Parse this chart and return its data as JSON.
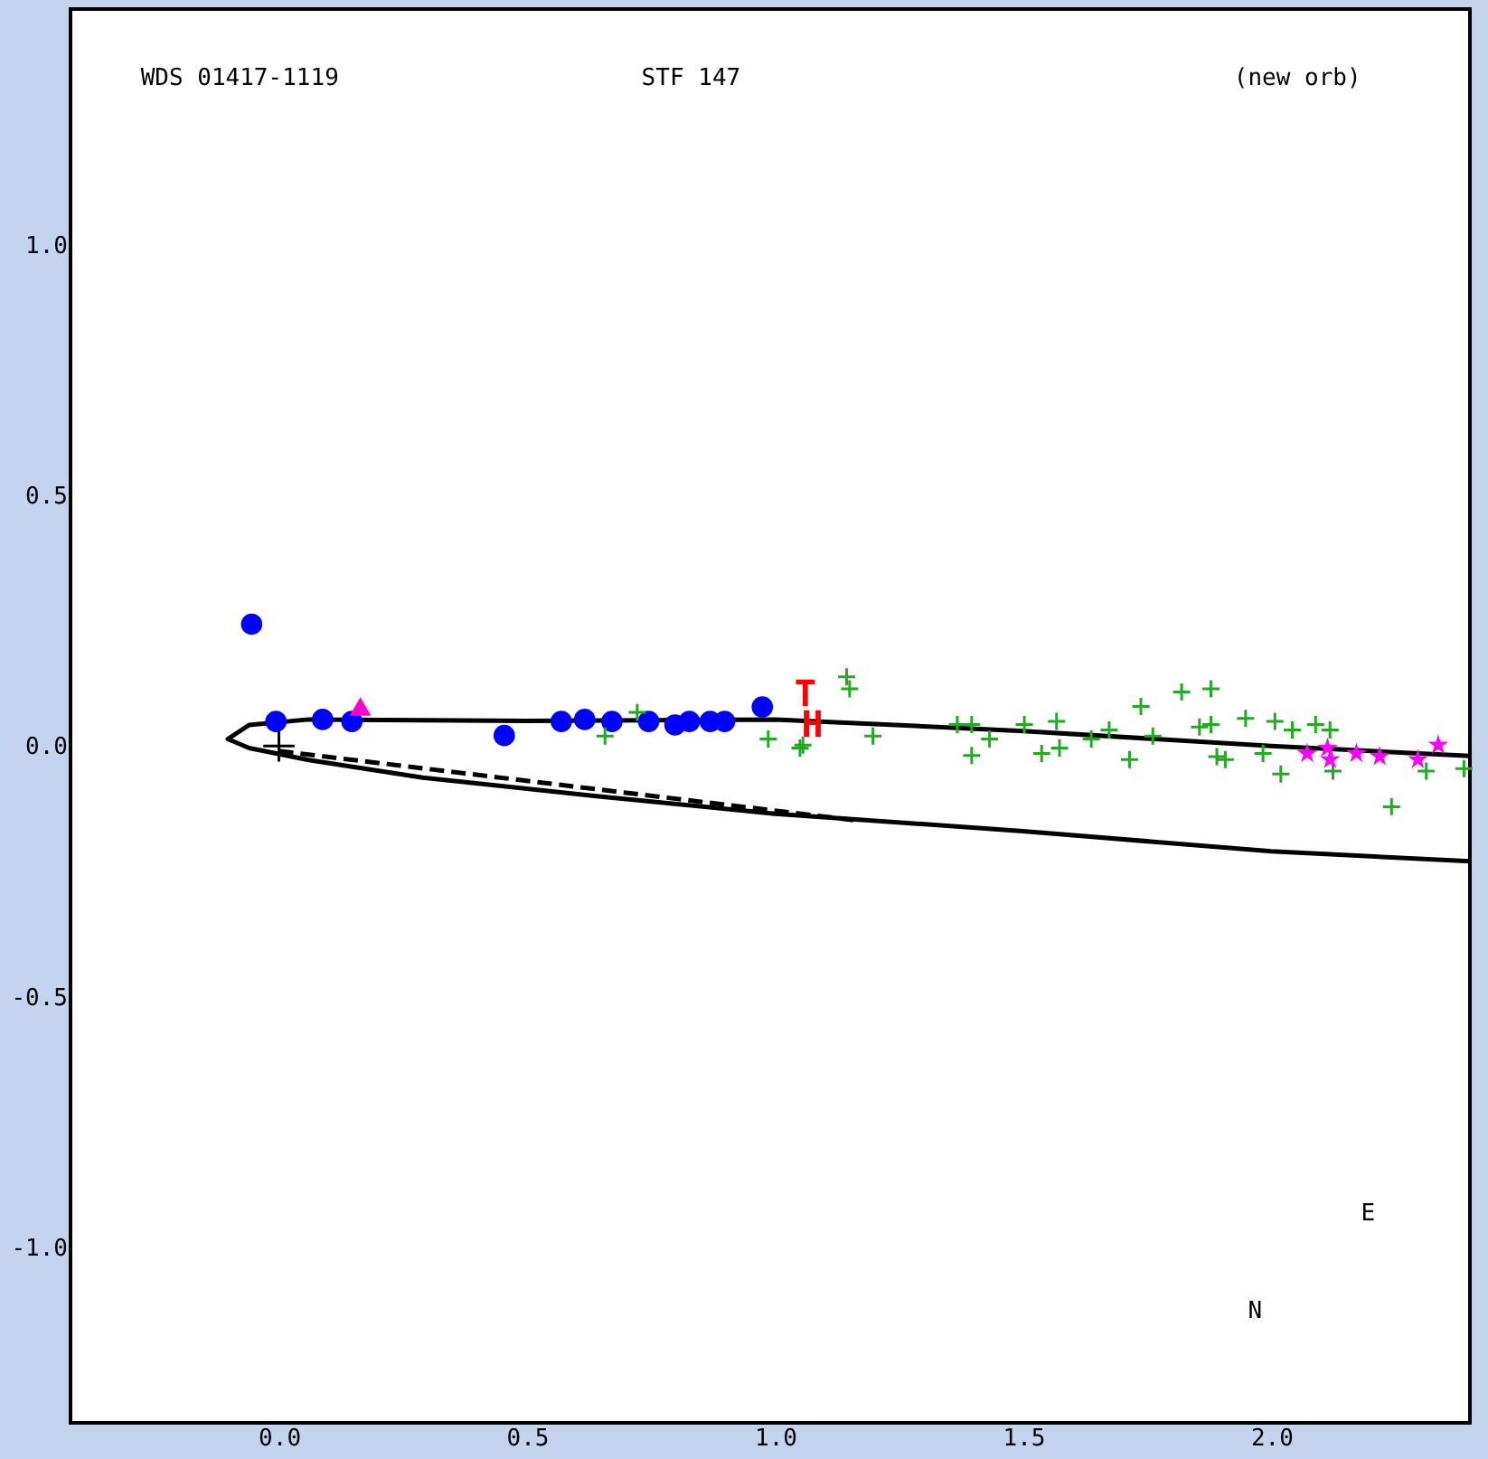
{
  "chart_data": {
    "type": "scatter",
    "xlim": [
      -0.42,
      2.4
    ],
    "ylim": [
      -1.35,
      1.47
    ],
    "xticks": [
      {
        "value": 0,
        "label": "0.0"
      },
      {
        "value": 0.5,
        "label": "0.5"
      },
      {
        "value": 1,
        "label": "1.0"
      },
      {
        "value": 1.5,
        "label": "1.5"
      },
      {
        "value": 2,
        "label": "2.0"
      }
    ],
    "yticks": [
      {
        "value": 1,
        "label": "1.0"
      },
      {
        "value": 0.5,
        "label": "0.5"
      },
      {
        "value": 0,
        "label": "0.0"
      },
      {
        "value": -0.5,
        "label": "-0.5"
      },
      {
        "value": -1,
        "label": "-1.0"
      }
    ],
    "grid": false,
    "annotations": [
      "WDS 01417-1119",
      "STF 147",
      "(new orb)",
      "N",
      "E",
      "H",
      "T"
    ],
    "series": [
      {
        "type": "line",
        "color": "#000000",
        "line_style": "solid",
        "x": [
          2.4,
          2.0,
          1.5,
          1.0,
          0.5,
          0.06,
          -0.06,
          -0.103,
          -0.06,
          0.06,
          0.29,
          0.64,
          1.0,
          1.5,
          2.0,
          2.4
        ],
        "values": [
          -0.02,
          0.0,
          0.03,
          0.053,
          0.05,
          0.053,
          0.042,
          0.014,
          -0.004,
          -0.028,
          -0.063,
          -0.1,
          -0.135,
          -0.17,
          -0.21,
          -0.23
        ]
      },
      {
        "type": "line",
        "color": "#000000",
        "line_style": "dashed",
        "x": [
          0.0,
          1.16
        ],
        "values": [
          -0.01,
          -0.148
        ]
      },
      {
        "color": "#000000",
        "marker": "cross",
        "x": [
          0.0
        ],
        "values": [
          0.0
        ]
      },
      {
        "color": "#0000ff",
        "marker": "circle",
        "x": [
          -0.055,
          -0.006,
          0.088,
          0.147,
          0.454,
          0.569,
          0.616,
          0.671,
          0.745,
          0.798,
          0.827,
          0.869,
          0.898,
          0.974
        ],
        "values": [
          0.243,
          0.049,
          0.053,
          0.049,
          0.021,
          0.049,
          0.053,
          0.049,
          0.049,
          0.042,
          0.049,
          0.049,
          0.049,
          0.078
        ]
      },
      {
        "color": "#ff00cc",
        "marker": "triangle",
        "x": [
          0.164
        ],
        "values": [
          0.079
        ]
      },
      {
        "color": "#22aa22",
        "marker": "cross",
        "x": [
          0.722,
          0.657,
          0.986,
          1.05,
          1.144,
          1.15,
          1.056,
          1.197,
          1.367,
          1.396,
          1.396,
          1.432,
          1.502,
          1.537,
          1.567,
          1.573,
          1.637,
          1.673,
          1.714,
          1.737,
          1.761,
          1.819,
          1.855,
          1.878,
          1.878,
          1.89,
          1.907,
          1.948,
          1.983,
          2.007,
          2.019,
          2.042,
          2.089,
          2.118,
          2.124,
          2.242,
          2.312,
          2.388
        ],
        "values": [
          0.067,
          0.02,
          0.014,
          -0.004,
          0.138,
          0.114,
          0.002,
          0.02,
          0.043,
          0.043,
          -0.019,
          0.014,
          0.043,
          -0.015,
          0.049,
          -0.004,
          0.014,
          0.032,
          -0.027,
          0.079,
          0.02,
          0.108,
          0.038,
          0.114,
          0.043,
          -0.021,
          -0.027,
          0.055,
          -0.015,
          0.049,
          -0.056,
          0.032,
          0.043,
          0.032,
          -0.05,
          -0.121,
          -0.05,
          -0.045
        ]
      },
      {
        "color": "#ff00ff",
        "marker": "star",
        "x": [
          2.072,
          2.113,
          2.118,
          2.171,
          2.218,
          2.295,
          2.336
        ],
        "values": [
          -0.015,
          -0.004,
          -0.027,
          -0.015,
          -0.021,
          -0.027,
          0.002
        ]
      }
    ]
  }
}
